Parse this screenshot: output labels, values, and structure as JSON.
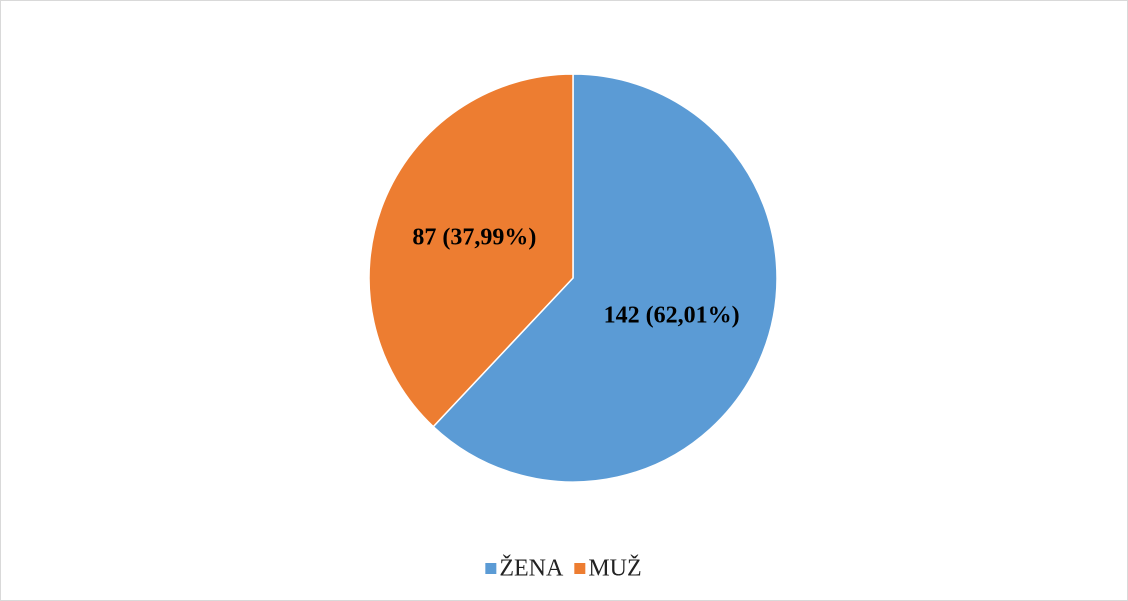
{
  "chart_data": {
    "type": "pie",
    "categories": [
      "ŽENA",
      "MUŽ"
    ],
    "values": [
      142,
      87
    ],
    "value_labels": [
      "142 (62,01%)",
      "87 (37,99%)"
    ],
    "colors": [
      "#5b9bd5",
      "#ed7d31"
    ],
    "legend": "bottom"
  }
}
